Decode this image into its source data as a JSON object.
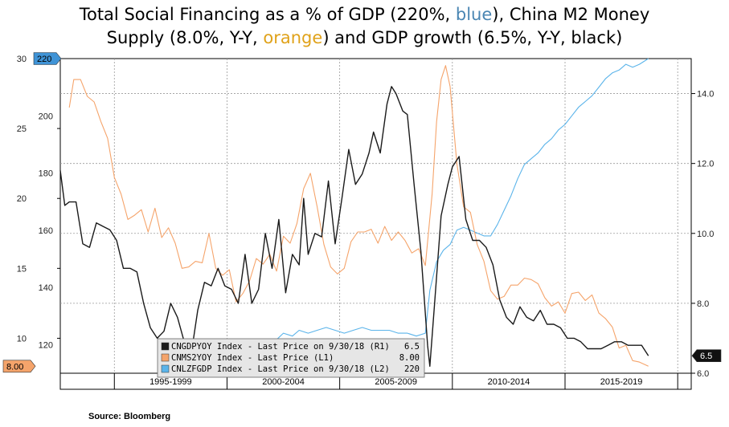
{
  "title": {
    "line1": "Total Social Financing as a % of GDP (220%, ",
    "blue_word": "blue",
    "line1_end": "), China M2 Money",
    "line2_start": "Supply (8.0%, Y-Y, ",
    "orange_word": "orange",
    "line2_end": ") and GDP growth (6.5%, Y-Y, black)"
  },
  "source": "Source: Bloomberg",
  "colors": {
    "gdp": "#1a1a1a",
    "m2": "#f5a46b",
    "tsf": "#5bb4ea",
    "gdp_tag": "#111111",
    "m2_tag": "#f5a46b",
    "tsf_tag": "#3f93d6",
    "grid": "#9a9a9a",
    "legend_bg": "#e6e6e6"
  },
  "chart_data": {
    "type": "line",
    "x_range": [
      1992.6,
      2020.6
    ],
    "eras": [
      "1995-1999",
      "2000-2004",
      "2005-2009",
      "2010-2014",
      "2015-2019"
    ],
    "era_bounds": [
      1995.0,
      2000.0,
      2005.0,
      2010.0,
      2015.0,
      2020.0
    ],
    "axes": {
      "left_outer": {
        "ticks": [
          "10",
          "15",
          "20",
          "25",
          "30"
        ],
        "range": [
          7.5,
          30
        ]
      },
      "left_inner": {
        "ticks": [
          "120",
          "140",
          "160",
          "180",
          "200"
        ],
        "range": [
          110,
          220
        ]
      },
      "right": {
        "ticks": [
          "6.0",
          "8.0",
          "10.0",
          "12.0",
          "14.0"
        ],
        "range": [
          6,
          15
        ]
      }
    },
    "series": [
      {
        "name": "CNGDPYOY Index - Last Price on 9/30/18 (R1)",
        "last": "6.5",
        "axis": "right",
        "x": [
          1992.6,
          1992.8,
          1993.0,
          1993.3,
          1993.6,
          1993.9,
          1994.2,
          1994.5,
          1994.8,
          1995.1,
          1995.4,
          1995.7,
          1996.0,
          1996.3,
          1996.6,
          1996.9,
          1997.2,
          1997.5,
          1997.8,
          1998.1,
          1998.4,
          1998.7,
          1999.0,
          1999.3,
          1999.6,
          1999.9,
          2000.2,
          2000.5,
          2000.8,
          2001.1,
          2001.4,
          2001.7,
          2002.0,
          2002.3,
          2002.6,
          2002.9,
          2003.2,
          2003.4,
          2003.6,
          2003.9,
          2004.2,
          2004.5,
          2004.8,
          2005.1,
          2005.4,
          2005.7,
          2006.0,
          2006.3,
          2006.5,
          2006.8,
          2007.1,
          2007.3,
          2007.5,
          2007.8,
          2008.0,
          2008.3,
          2008.6,
          2008.9,
          2009.0,
          2009.2,
          2009.5,
          2009.8,
          2010.0,
          2010.3,
          2010.6,
          2010.9,
          2011.2,
          2011.5,
          2011.8,
          2012.1,
          2012.4,
          2012.7,
          2013.0,
          2013.3,
          2013.6,
          2013.9,
          2014.2,
          2014.5,
          2014.8,
          2015.1,
          2015.4,
          2015.7,
          2016.0,
          2016.3,
          2016.6,
          2016.9,
          2017.2,
          2017.5,
          2017.8,
          2018.1,
          2018.4,
          2018.7
        ],
        "y": [
          11.8,
          10.8,
          10.9,
          10.9,
          9.7,
          9.6,
          10.3,
          10.2,
          10.1,
          9.8,
          9.0,
          9.0,
          8.9,
          8.0,
          7.3,
          7.0,
          7.2,
          8.0,
          7.6,
          6.9,
          6.5,
          7.8,
          8.6,
          8.5,
          9.0,
          8.5,
          8.4,
          8.0,
          9.4,
          8.0,
          8.4,
          10.0,
          9.0,
          10.4,
          8.3,
          9.4,
          9.1,
          11.0,
          9.4,
          10.0,
          9.9,
          11.5,
          9.7,
          11.0,
          12.4,
          11.4,
          11.7,
          12.3,
          12.9,
          12.3,
          13.7,
          14.2,
          14.0,
          13.5,
          13.4,
          11.4,
          9.5,
          6.8,
          6.2,
          7.9,
          10.5,
          11.4,
          11.9,
          12.2,
          10.4,
          9.8,
          9.8,
          9.6,
          9.1,
          8.1,
          7.6,
          7.4,
          7.9,
          7.6,
          7.5,
          7.8,
          7.4,
          7.4,
          7.3,
          7.0,
          7.0,
          6.9,
          6.7,
          6.7,
          6.7,
          6.8,
          6.9,
          6.9,
          6.8,
          6.8,
          6.8,
          6.5
        ]
      },
      {
        "name": "CNMS2YOY Index - Last Price (L1)",
        "last": "8.00",
        "axis": "left_outer",
        "x": [
          1993.0,
          1993.2,
          1993.5,
          1993.8,
          1994.1,
          1994.4,
          1994.7,
          1995.0,
          1995.3,
          1995.6,
          1995.9,
          1996.2,
          1996.5,
          1996.8,
          1997.1,
          1997.4,
          1997.7,
          1998.0,
          1998.3,
          1998.6,
          1998.9,
          1999.2,
          1999.5,
          1999.8,
          2000.1,
          2000.4,
          2000.7,
          2001.0,
          2001.3,
          2001.6,
          2001.9,
          2002.2,
          2002.5,
          2002.8,
          2003.1,
          2003.4,
          2003.7,
          2004.0,
          2004.3,
          2004.6,
          2004.9,
          2005.2,
          2005.5,
          2005.8,
          2006.1,
          2006.4,
          2006.7,
          2007.0,
          2007.3,
          2007.6,
          2007.9,
          2008.2,
          2008.5,
          2008.8,
          2009.1,
          2009.3,
          2009.5,
          2009.7,
          2009.9,
          2010.2,
          2010.5,
          2010.8,
          2011.1,
          2011.4,
          2011.7,
          2012.0,
          2012.3,
          2012.6,
          2012.9,
          2013.2,
          2013.5,
          2013.8,
          2014.1,
          2014.4,
          2014.7,
          2015.0,
          2015.3,
          2015.6,
          2015.9,
          2016.2,
          2016.5,
          2016.8,
          2017.1,
          2017.4,
          2017.7,
          2018.0,
          2018.3,
          2018.7
        ],
        "y": [
          26.5,
          28.5,
          28.5,
          27.3,
          26.9,
          25.5,
          24.3,
          21.5,
          20.3,
          18.5,
          18.8,
          19.2,
          17.6,
          19.3,
          17.2,
          17.9,
          16.8,
          15.0,
          15.1,
          15.5,
          15.4,
          17.5,
          15.0,
          14.5,
          14.9,
          12.6,
          13.2,
          14.1,
          15.7,
          15.3,
          16.0,
          14.8,
          17.3,
          16.8,
          18.2,
          20.7,
          21.8,
          19.4,
          16.7,
          15.1,
          14.6,
          15.0,
          16.9,
          17.6,
          17.6,
          17.8,
          16.8,
          18.0,
          17.0,
          17.6,
          17.0,
          16.1,
          16.4,
          15.2,
          20.3,
          25.5,
          28.5,
          29.5,
          28.0,
          22.5,
          19.4,
          19.0,
          16.7,
          15.5,
          13.4,
          12.8,
          13.0,
          13.8,
          13.8,
          14.3,
          14.2,
          13.9,
          12.9,
          12.3,
          12.6,
          11.8,
          13.2,
          13.3,
          12.7,
          13.1,
          11.8,
          11.4,
          10.8,
          9.3,
          9.5,
          8.4,
          8.3,
          8.0
        ]
      },
      {
        "name": "CNLZFGDP Index - Last Price on 9/30/18 (L2)",
        "last": "220",
        "axis": "left_inner",
        "x": [
          2002.1,
          2002.5,
          2002.9,
          2003.2,
          2003.6,
          2004.0,
          2004.4,
          2004.8,
          2005.2,
          2005.6,
          2006.0,
          2006.4,
          2006.8,
          2007.2,
          2007.6,
          2008.0,
          2008.4,
          2008.8,
          2009.0,
          2009.3,
          2009.6,
          2009.9,
          2010.2,
          2010.5,
          2010.8,
          2011.1,
          2011.4,
          2011.7,
          2012.0,
          2012.3,
          2012.6,
          2012.9,
          2013.2,
          2013.5,
          2013.8,
          2014.1,
          2014.4,
          2014.7,
          2015.0,
          2015.3,
          2015.6,
          2015.9,
          2016.2,
          2016.5,
          2016.8,
          2017.1,
          2017.4,
          2017.7,
          2018.0,
          2018.3,
          2018.7
        ],
        "y": [
          121,
          124,
          123,
          125,
          124,
          125,
          126,
          125,
          124,
          125,
          126,
          125,
          125,
          125,
          124,
          124,
          123,
          124,
          139,
          149,
          153,
          155,
          160,
          161,
          160,
          159,
          158,
          158,
          162,
          167,
          172,
          178,
          183,
          185,
          187,
          190,
          192,
          195,
          197,
          200,
          203,
          205,
          207,
          210,
          213,
          215,
          216,
          218,
          217,
          218,
          220
        ]
      }
    ]
  }
}
